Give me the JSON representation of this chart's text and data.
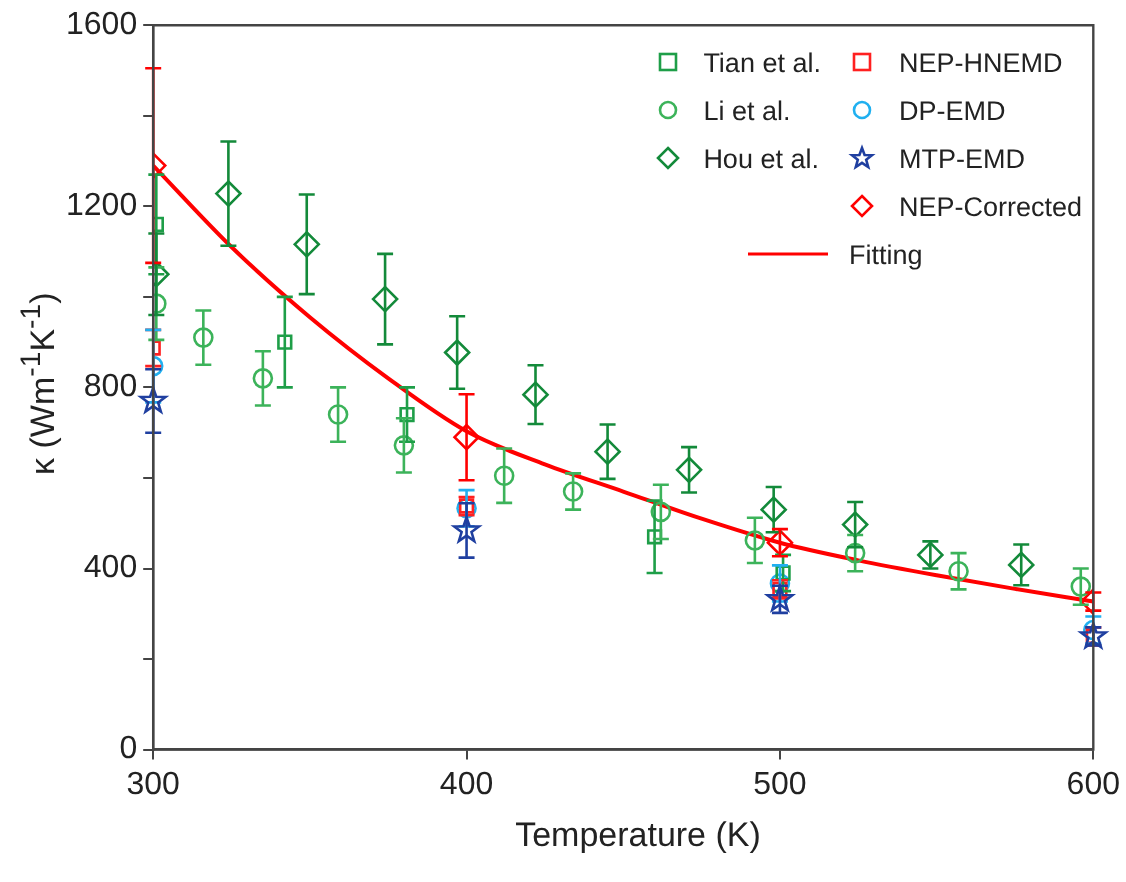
{
  "chart_data": {
    "type": "scatter",
    "xlabel": "Temperature (K)",
    "ylabel": "κ (Wm$^{-1}$K$^{-1}$)",
    "xlim": [
      300,
      600
    ],
    "xticks": [
      300,
      400,
      500,
      600
    ],
    "ylim": [
      0,
      1600
    ],
    "yticks": [
      0,
      {
        "value": 200,
        "label": null
      },
      400,
      {
        "value": 600,
        "label": null
      },
      800,
      {
        "value": 1000,
        "label": null
      },
      1200,
      {
        "value": 1400,
        "label": null
      },
      1600
    ],
    "grid": false,
    "legend": "top right",
    "series": [
      {
        "name": "Tian et al.",
        "marker": "square",
        "color": "#1e9e48",
        "x": [
          301,
          342,
          381,
          460,
          501
        ],
        "values": [
          1160,
          900,
          740,
          470,
          390
        ],
        "errors": [
          110,
          100,
          60,
          80,
          40
        ]
      },
      {
        "name": "Li et al.",
        "marker": "circle",
        "color": "#3cb35a",
        "x": [
          301,
          316,
          335,
          359,
          380,
          412,
          434,
          462,
          492,
          524,
          557,
          596
        ],
        "values": [
          985,
          910,
          820,
          740,
          672,
          605,
          570,
          525,
          462,
          434,
          394,
          360
        ],
        "errors": [
          80,
          60,
          60,
          60,
          60,
          60,
          40,
          60,
          50,
          40,
          40,
          40
        ]
      },
      {
        "name": "Hou et al.",
        "marker": "diamond",
        "color": "#138a3a",
        "x": [
          301,
          324,
          349,
          374,
          397,
          422,
          445,
          471,
          498,
          524,
          548,
          577
        ],
        "values": [
          1050,
          1228,
          1116,
          995,
          877,
          784,
          658,
          618,
          530,
          497,
          430,
          408
        ],
        "errors": [
          90,
          115,
          110,
          100,
          80,
          65,
          60,
          50,
          50,
          50,
          30,
          45
        ]
      },
      {
        "name": "NEP-HNEMD",
        "marker": "square",
        "color": "#ff2020",
        "x": [
          300,
          400,
          500,
          600
        ],
        "values": [
          887,
          538,
          354,
          250
        ],
        "errors": [
          40,
          20,
          20,
          20
        ]
      },
      {
        "name": "DP-EMD",
        "marker": "circle",
        "color": "#20b0f0",
        "x": [
          300,
          400,
          500,
          600
        ],
        "values": [
          847,
          533,
          367,
          264
        ],
        "errors": [
          80,
          40,
          40,
          30
        ]
      },
      {
        "name": "MTP-EMD",
        "marker": "star",
        "color": "#1f3fa0",
        "x": [
          300,
          400,
          500,
          600
        ],
        "values": [
          770,
          484,
          332,
          250
        ],
        "errors": [
          70,
          60,
          30,
          20
        ]
      },
      {
        "name": "NEP-Corrected",
        "marker": "diamond",
        "color": "#ff0000",
        "x": [
          300,
          400,
          500,
          600
        ],
        "values": [
          1290,
          690,
          457,
          327
        ],
        "errors": [
          215,
          95,
          30,
          20
        ]
      },
      {
        "name": "Fitting",
        "type": "line",
        "marker": "none",
        "line_style": "solid",
        "color": "#ff0000",
        "x": [
          300,
          325,
          350,
          375,
          400,
          425,
          450,
          475,
          500,
          525,
          550,
          575,
          600
        ],
        "values": [
          1290,
          1110,
          955,
          820,
          703,
          630,
          570,
          510,
          457,
          418,
          385,
          355,
          327
        ]
      }
    ]
  }
}
